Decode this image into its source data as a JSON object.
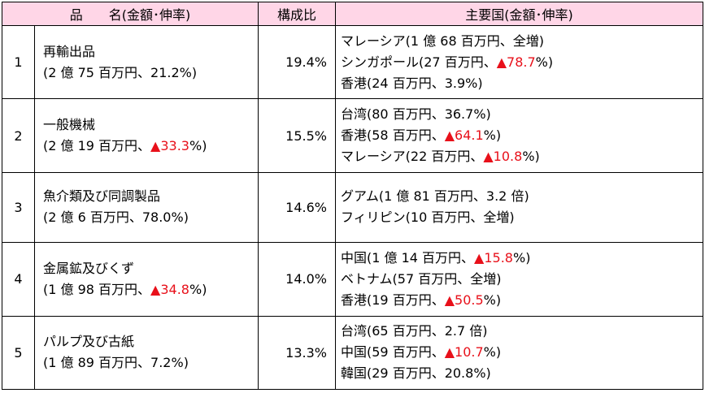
{
  "header": {
    "item": "品　　名(金額･伸率)",
    "ratio": "構成比",
    "countries": "主要国(金額･伸率)"
  },
  "rows": [
    {
      "no": "1",
      "name": "再輸出品",
      "amount_pre": "(2 億 75 百万円、21.2%)",
      "neg": "",
      "amount_post": "",
      "ratio": "19.4%",
      "countries": [
        {
          "pre": "マレーシア(1 億 68 百万円、全増)",
          "neg": "",
          "post": ""
        },
        {
          "pre": "シンガポール(27 百万円、",
          "neg": "▲78.7",
          "post": "%)"
        },
        {
          "pre": "香港(24 百万円、3.9%)",
          "neg": "",
          "post": ""
        }
      ]
    },
    {
      "no": "2",
      "name": "一般機械",
      "amount_pre": "(2 億 19 百万円、",
      "neg": "▲33.3",
      "amount_post": "%)",
      "ratio": "15.5%",
      "countries": [
        {
          "pre": "台湾(80 百万円、36.7%)",
          "neg": "",
          "post": ""
        },
        {
          "pre": "香港(58 百万円、",
          "neg": "▲64.1",
          "post": "%)"
        },
        {
          "pre": "マレーシア(22 百万円、",
          "neg": "▲10.8",
          "post": "%)"
        }
      ]
    },
    {
      "no": "3",
      "name": "魚介類及び同調製品",
      "amount_pre": "(2 億 6 百万円、78.0%)",
      "neg": "",
      "amount_post": "",
      "ratio": "14.6%",
      "countries": [
        {
          "pre": "グアム(1 億 81 百万円、3.2 倍)",
          "neg": "",
          "post": ""
        },
        {
          "pre": "フィリピン(10 百万円、全増)",
          "neg": "",
          "post": ""
        }
      ]
    },
    {
      "no": "4",
      "name": "金属鉱及びくず",
      "amount_pre": "(1 億 98 百万円、",
      "neg": "▲34.8",
      "amount_post": "%)",
      "ratio": "14.0%",
      "countries": [
        {
          "pre": "中国(1 億 14 百万円、",
          "neg": "▲15.8",
          "post": "%)"
        },
        {
          "pre": "ベトナム(57 百万円、全増)",
          "neg": "",
          "post": ""
        },
        {
          "pre": "香港(19 百万円、",
          "neg": "▲50.5",
          "post": "%)"
        }
      ]
    },
    {
      "no": "5",
      "name": "パルプ及び古紙",
      "amount_pre": "(1 億 89 百万円、7.2%)",
      "neg": "",
      "amount_post": "",
      "ratio": "13.3%",
      "countries": [
        {
          "pre": "台湾(65 百万円、2.7 倍)",
          "neg": "",
          "post": ""
        },
        {
          "pre": "中国(59 百万円、",
          "neg": "▲10.7",
          "post": "%)"
        },
        {
          "pre": "韓国(29 百万円、20.8%)",
          "neg": "",
          "post": ""
        }
      ]
    }
  ],
  "colors": {
    "header_bg": "#ffd6e7",
    "negative": "#e8101a",
    "border": "#000000"
  }
}
